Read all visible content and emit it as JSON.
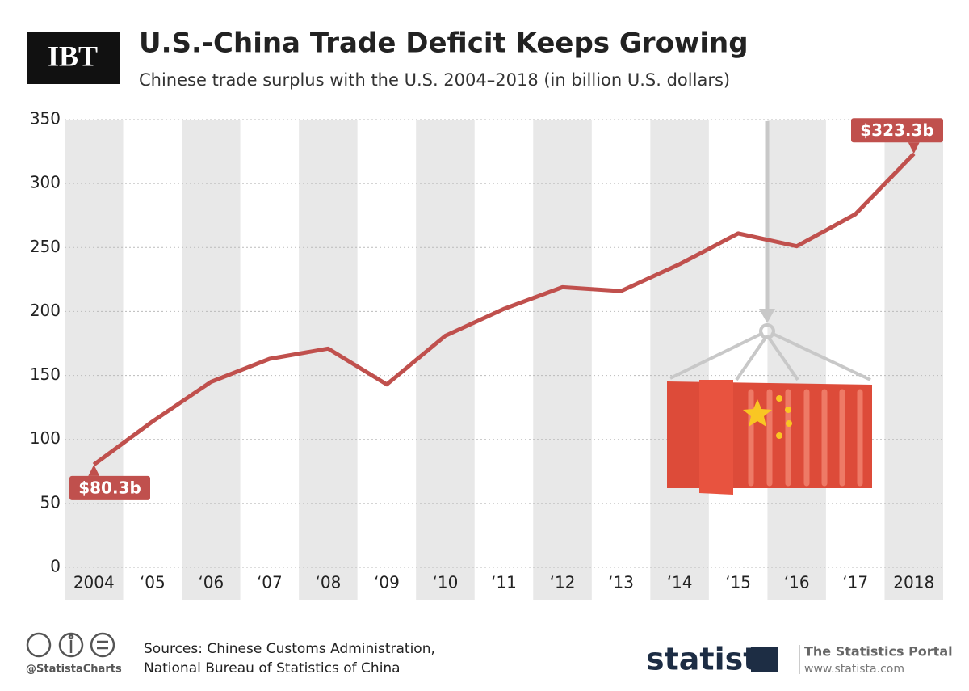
{
  "header": {
    "logo": "IBT"
  },
  "chart_data": {
    "type": "line",
    "title": "U.S.-China Trade Deficit Keeps Growing",
    "subtitle": "Chinese trade surplus with the U.S. 2004–2018 (in billion U.S. dollars)",
    "categories": [
      "2004",
      "‘05",
      "‘06",
      "‘07",
      "‘08",
      "‘09",
      "‘10",
      "‘11",
      "‘12",
      "‘13",
      "‘14",
      "‘15",
      "‘16",
      "‘17",
      "2018"
    ],
    "values": [
      80.3,
      114,
      145,
      163,
      171,
      143,
      181,
      202,
      219,
      216,
      237,
      261,
      251,
      276,
      323.3
    ],
    "value_labels": [
      "$80.3b",
      null,
      null,
      null,
      null,
      null,
      null,
      null,
      null,
      null,
      null,
      null,
      null,
      null,
      "$323.3b"
    ],
    "color": "#c0504d",
    "ylim": [
      0,
      350
    ],
    "yticks": [
      0,
      50,
      100,
      150,
      200,
      250,
      300,
      350
    ],
    "grid": true
  },
  "footer": {
    "handle": "@StatistaCharts",
    "sources": [
      "Sources: Chinese Customs Administration,",
      "National Bureau of Statistics of China"
    ],
    "brand": "statista",
    "portal": "The Statistics Portal",
    "url": "www.statista.com"
  }
}
